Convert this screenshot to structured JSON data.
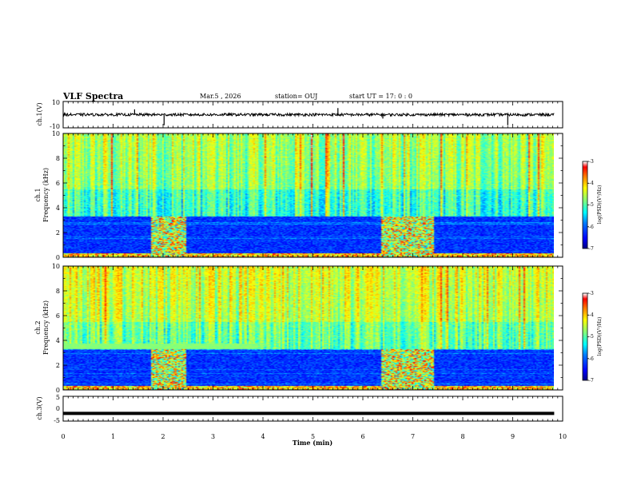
{
  "header": {
    "title": "VLF Spectra",
    "date": "Mar.5 , 2026",
    "station": "station= OUJ",
    "start_ut": "start UT = 17: 0 : 0"
  },
  "chart_data": {
    "type": "heatmap",
    "title": "VLF Spectra",
    "xlabel": "Time (min)",
    "xlim": [
      0,
      10
    ],
    "x_ticks": [
      "0",
      "1",
      "2",
      "3",
      "4",
      "5",
      "6",
      "7",
      "8",
      "9",
      "10"
    ],
    "data_end_min": 9.83,
    "panels": [
      {
        "name": "ch1-waveform",
        "kind": "waveform",
        "ylabel": "ch.1(V)",
        "ylim": [
          -10,
          10
        ],
        "y_ticks": [
          "10",
          "-10"
        ],
        "baseline": 0,
        "noise_amplitude": 1,
        "spikes": [
          {
            "t": 1.43,
            "v": 4
          },
          {
            "t": 2.02,
            "v": -8
          },
          {
            "t": 5.5,
            "v": 5
          },
          {
            "t": 6.4,
            "v": -3
          },
          {
            "t": 8.9,
            "v": -8
          }
        ]
      },
      {
        "name": "ch1-spectrogram",
        "kind": "spectrogram",
        "ylabel": "ch.1",
        "ylabel2": "Frequency (kHz)",
        "ylim": [
          0,
          10
        ],
        "y_ticks": [
          "0",
          "2",
          "4",
          "6",
          "8",
          "10"
        ],
        "low_band_top_khz": 3.3,
        "bursts": [
          {
            "t0": 1.75,
            "t1": 2.45
          },
          {
            "t0": 6.35,
            "t1": 7.4
          }
        ],
        "colorbar": {
          "label": "log(PSD)(V²/Hz)",
          "range": [
            -7,
            -3
          ],
          "ticks": [
            "-3",
            "-4",
            "-5",
            "-6",
            "-7"
          ]
        }
      },
      {
        "name": "ch2-spectrogram",
        "kind": "spectrogram",
        "ylabel": "ch.2",
        "ylabel2": "Frequency (kHz)",
        "ylim": [
          0,
          10
        ],
        "y_ticks": [
          "0",
          "2",
          "4",
          "6",
          "8",
          "10"
        ],
        "low_band_top_khz": 3.3,
        "green_band_khz": [
          3.3,
          3.8
        ],
        "green_band_until_min": 3.9,
        "bursts": [
          {
            "t0": 1.75,
            "t1": 2.45
          },
          {
            "t0": 6.35,
            "t1": 7.4
          }
        ],
        "colorbar": {
          "label": "log(PSD)(V²/Hz)",
          "range": [
            -7,
            -3
          ],
          "ticks": [
            "-3",
            "-4",
            "-5",
            "-6",
            "-7"
          ]
        }
      },
      {
        "name": "ch3-waveform",
        "kind": "waveform",
        "ylabel": "ch.3(V)",
        "ylim": [
          -5,
          5
        ],
        "y_ticks": [
          "5",
          "0",
          "-5"
        ],
        "baseline": -1.9
      }
    ],
    "colors": {
      "colormap": [
        "#00007f",
        "#0000ff",
        "#007fff",
        "#00ffff",
        "#7fff7f",
        "#ffff00",
        "#ff7f00",
        "#ff0000",
        "#ffffff"
      ]
    }
  }
}
